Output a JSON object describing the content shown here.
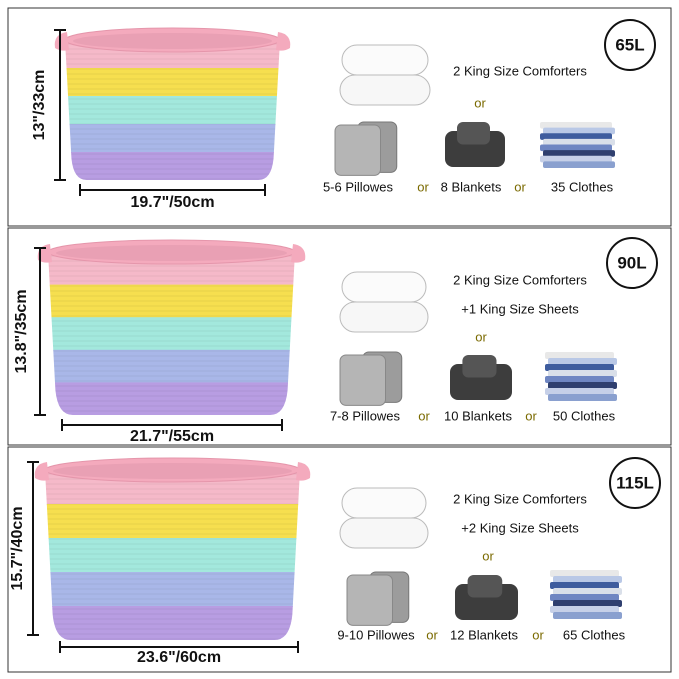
{
  "panels": [
    {
      "capacity": "65L",
      "height": "13\"/33cm",
      "width": "19.7\"/50cm",
      "comforter_lines": [
        "2 King Size Comforters"
      ],
      "or_top": "or",
      "pillows": "5-6 Pillowes",
      "or_1": "or",
      "blankets": "8 Blankets",
      "or_2": "or",
      "clothes": "35 Clothes"
    },
    {
      "capacity": "90L",
      "height": "13.8\"/35cm",
      "width": "21.7\"/55cm",
      "comforter_lines": [
        "2 King Size Comforters",
        "+1 King Size Sheets"
      ],
      "or_top": "or",
      "pillows": "7-8 Pillowes",
      "or_1": "or",
      "blankets": "10 Blankets",
      "or_2": "or",
      "clothes": "50 Clothes"
    },
    {
      "capacity": "115L",
      "height": "15.7\"/40cm",
      "width": "23.6\"/60cm",
      "comforter_lines": [
        "2 King Size Comforters",
        "+2 King Size Sheets"
      ],
      "or_top": "or",
      "pillows": "9-10 Pillowes",
      "or_1": "or",
      "blankets": "12 Blankets",
      "or_2": "or",
      "clothes": "65 Clothes"
    }
  ]
}
